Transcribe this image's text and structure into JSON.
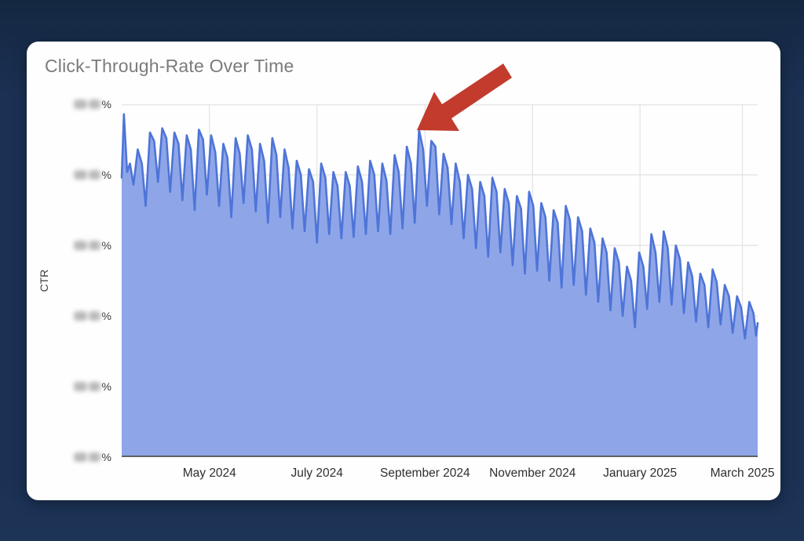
{
  "window": {
    "background": "#1b3154"
  },
  "card": {
    "background": "#fefefe"
  },
  "chart": {
    "title": "Click-Through-Rate Over Time",
    "y_axis_title": "CTR",
    "y_tick_suffix": "%"
  },
  "colors": {
    "background": "#1b3154",
    "card": "#fefefe",
    "title_text": "#7b7b7b",
    "axis_text": "#2e2e2e",
    "gridline": "#e2e2e2",
    "axis_line": "#616161",
    "series_line": "#4e74d8",
    "series_fill": "#8ea6e8",
    "arrow": "#c23b2c",
    "masked_label_blob": "#8f8f8f"
  },
  "annotation": {
    "type": "red-arrow",
    "points_at": "CTR peak just before September 2024"
  },
  "chart_data": {
    "type": "area",
    "title": "Click-Through-Rate Over Time",
    "xlabel": "",
    "ylabel": "CTR",
    "legend": false,
    "grid": true,
    "ylim": [
      0,
      2.5
    ],
    "y_units": "percent (numeric y tick values are blurred/redacted in the source image)",
    "y_ticks": {
      "count": 6,
      "suffix": "%",
      "values_masked": true
    },
    "x_ticks": [
      {
        "label": "May 2024",
        "pos": 0.138
      },
      {
        "label": "July 2024",
        "pos": 0.307
      },
      {
        "label": "September 2024",
        "pos": 0.477
      },
      {
        "label": "November 2024",
        "pos": 0.646
      },
      {
        "label": "January 2025",
        "pos": 0.815
      },
      {
        "label": "March 2025",
        "pos": 0.976
      }
    ],
    "series": [
      {
        "name": "CTR",
        "points": [
          [
            0.0,
            1.98
          ],
          [
            0.0035,
            2.43
          ],
          [
            0.0085,
            2.02
          ],
          [
            0.013,
            2.08
          ],
          [
            0.0185,
            1.93
          ],
          [
            0.0252,
            2.18
          ],
          [
            0.0317,
            2.08
          ],
          [
            0.0377,
            1.78
          ],
          [
            0.0445,
            2.3
          ],
          [
            0.051,
            2.24
          ],
          [
            0.057,
            1.95
          ],
          [
            0.0637,
            2.33
          ],
          [
            0.0702,
            2.26
          ],
          [
            0.0762,
            1.88
          ],
          [
            0.0829,
            2.3
          ],
          [
            0.0894,
            2.22
          ],
          [
            0.0954,
            1.82
          ],
          [
            0.1022,
            2.28
          ],
          [
            0.1087,
            2.18
          ],
          [
            0.1147,
            1.75
          ],
          [
            0.1214,
            2.32
          ],
          [
            0.1279,
            2.25
          ],
          [
            0.1339,
            1.86
          ],
          [
            0.1406,
            2.28
          ],
          [
            0.1471,
            2.16
          ],
          [
            0.1531,
            1.78
          ],
          [
            0.1598,
            2.22
          ],
          [
            0.1663,
            2.12
          ],
          [
            0.1723,
            1.7
          ],
          [
            0.1791,
            2.26
          ],
          [
            0.1856,
            2.15
          ],
          [
            0.1916,
            1.8
          ],
          [
            0.1983,
            2.28
          ],
          [
            0.2048,
            2.18
          ],
          [
            0.2108,
            1.74
          ],
          [
            0.2175,
            2.22
          ],
          [
            0.224,
            2.1
          ],
          [
            0.23,
            1.66
          ],
          [
            0.2368,
            2.26
          ],
          [
            0.2433,
            2.14
          ],
          [
            0.2493,
            1.7
          ],
          [
            0.256,
            2.18
          ],
          [
            0.2625,
            2.05
          ],
          [
            0.2685,
            1.62
          ],
          [
            0.2752,
            2.1
          ],
          [
            0.2817,
            2.0
          ],
          [
            0.2877,
            1.6
          ],
          [
            0.2945,
            2.04
          ],
          [
            0.301,
            1.95
          ],
          [
            0.307,
            1.52
          ],
          [
            0.3137,
            2.08
          ],
          [
            0.3202,
            1.98
          ],
          [
            0.3262,
            1.58
          ],
          [
            0.3329,
            2.02
          ],
          [
            0.3394,
            1.92
          ],
          [
            0.3454,
            1.55
          ],
          [
            0.3522,
            2.02
          ],
          [
            0.3587,
            1.92
          ],
          [
            0.3647,
            1.56
          ],
          [
            0.3714,
            2.06
          ],
          [
            0.3779,
            1.95
          ],
          [
            0.3839,
            1.58
          ],
          [
            0.3906,
            2.1
          ],
          [
            0.3971,
            2.0
          ],
          [
            0.4031,
            1.6
          ],
          [
            0.4098,
            2.08
          ],
          [
            0.4163,
            1.96
          ],
          [
            0.4223,
            1.58
          ],
          [
            0.4291,
            2.14
          ],
          [
            0.4356,
            2.02
          ],
          [
            0.4416,
            1.62
          ],
          [
            0.4483,
            2.2
          ],
          [
            0.4548,
            2.08
          ],
          [
            0.4608,
            1.66
          ],
          [
            0.4675,
            2.32
          ],
          [
            0.474,
            2.18
          ],
          [
            0.48,
            1.78
          ],
          [
            0.4868,
            2.24
          ],
          [
            0.4933,
            2.2
          ],
          [
            0.4993,
            1.72
          ],
          [
            0.506,
            2.15
          ],
          [
            0.5125,
            2.05
          ],
          [
            0.5185,
            1.65
          ],
          [
            0.5252,
            2.08
          ],
          [
            0.5317,
            1.95
          ],
          [
            0.5377,
            1.55
          ],
          [
            0.5445,
            2.0
          ],
          [
            0.551,
            1.9
          ],
          [
            0.557,
            1.48
          ],
          [
            0.5637,
            1.95
          ],
          [
            0.5702,
            1.85
          ],
          [
            0.5762,
            1.42
          ],
          [
            0.5829,
            1.98
          ],
          [
            0.5894,
            1.88
          ],
          [
            0.5954,
            1.45
          ],
          [
            0.6022,
            1.9
          ],
          [
            0.6087,
            1.8
          ],
          [
            0.6147,
            1.36
          ],
          [
            0.6214,
            1.85
          ],
          [
            0.6279,
            1.76
          ],
          [
            0.6339,
            1.3
          ],
          [
            0.6406,
            1.88
          ],
          [
            0.6471,
            1.78
          ],
          [
            0.6531,
            1.32
          ],
          [
            0.6598,
            1.8
          ],
          [
            0.6663,
            1.7
          ],
          [
            0.6723,
            1.25
          ],
          [
            0.6791,
            1.75
          ],
          [
            0.6856,
            1.66
          ],
          [
            0.6916,
            1.2
          ],
          [
            0.6983,
            1.78
          ],
          [
            0.7048,
            1.68
          ],
          [
            0.7108,
            1.22
          ],
          [
            0.7175,
            1.7
          ],
          [
            0.724,
            1.6
          ],
          [
            0.73,
            1.15
          ],
          [
            0.7368,
            1.62
          ],
          [
            0.7433,
            1.52
          ],
          [
            0.7493,
            1.1
          ],
          [
            0.756,
            1.55
          ],
          [
            0.7625,
            1.45
          ],
          [
            0.7685,
            1.04
          ],
          [
            0.7752,
            1.48
          ],
          [
            0.7817,
            1.38
          ],
          [
            0.7877,
            1.0
          ],
          [
            0.7945,
            1.35
          ],
          [
            0.801,
            1.25
          ],
          [
            0.807,
            0.92
          ],
          [
            0.8137,
            1.45
          ],
          [
            0.8202,
            1.35
          ],
          [
            0.8262,
            1.05
          ],
          [
            0.8329,
            1.58
          ],
          [
            0.8394,
            1.45
          ],
          [
            0.8454,
            1.1
          ],
          [
            0.8522,
            1.6
          ],
          [
            0.8587,
            1.48
          ],
          [
            0.8647,
            1.08
          ],
          [
            0.8714,
            1.5
          ],
          [
            0.8779,
            1.4
          ],
          [
            0.8839,
            1.02
          ],
          [
            0.8906,
            1.38
          ],
          [
            0.8971,
            1.28
          ],
          [
            0.9031,
            0.96
          ],
          [
            0.9098,
            1.3
          ],
          [
            0.9163,
            1.22
          ],
          [
            0.9223,
            0.92
          ],
          [
            0.9291,
            1.33
          ],
          [
            0.9356,
            1.24
          ],
          [
            0.9416,
            0.94
          ],
          [
            0.9483,
            1.22
          ],
          [
            0.9548,
            1.14
          ],
          [
            0.9608,
            0.88
          ],
          [
            0.9675,
            1.14
          ],
          [
            0.974,
            1.06
          ],
          [
            0.98,
            0.84
          ],
          [
            0.9868,
            1.1
          ],
          [
            0.9933,
            1.02
          ],
          [
            0.9975,
            0.86
          ],
          [
            1.0,
            0.95
          ]
        ]
      }
    ]
  }
}
